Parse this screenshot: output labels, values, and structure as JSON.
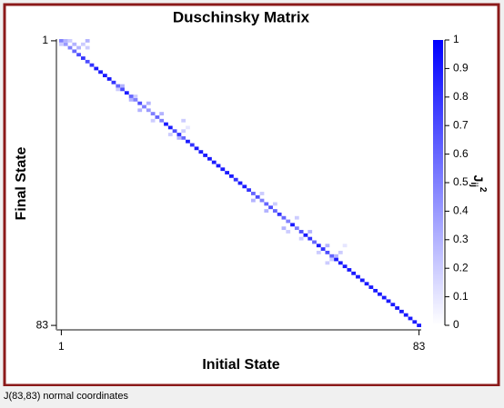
{
  "chart_data": {
    "type": "heatmap",
    "title": "Duschinsky Matrix",
    "x_label": "Initial State",
    "y_label": "Final State",
    "colorbar_label": {
      "base": "J",
      "sub": "ij",
      "sup": "2"
    },
    "xlim": [
      0.5,
      83.5
    ],
    "ylim": [
      83.5,
      0.5
    ],
    "xticks": [
      1,
      83
    ],
    "yticks": [
      1,
      83
    ],
    "zlim": [
      0,
      1
    ],
    "zticks": [
      0,
      0.1,
      0.2,
      0.3,
      0.4,
      0.5,
      0.6,
      0.7,
      0.8,
      0.9,
      1
    ],
    "color_low": "#ffffff",
    "color_high": "#0000ff",
    "cells": {
      "x": [
        1,
        2,
        3,
        4,
        5,
        6,
        7,
        8,
        9,
        10,
        11,
        12,
        13,
        14,
        15,
        16,
        17,
        18,
        19,
        20,
        21,
        22,
        23,
        24,
        25,
        26,
        27,
        28,
        29,
        30,
        31,
        32,
        33,
        34,
        35,
        36,
        37,
        38,
        39,
        40,
        41,
        42,
        43,
        44,
        45,
        46,
        47,
        48,
        49,
        50,
        51,
        52,
        53,
        54,
        55,
        56,
        57,
        58,
        59,
        60,
        61,
        62,
        63,
        64,
        65,
        66,
        67,
        68,
        69,
        70,
        71,
        72,
        73,
        74,
        75,
        76,
        77,
        78,
        79,
        80,
        81,
        82,
        83,
        2,
        3,
        4,
        1,
        6,
        7,
        7,
        5,
        14,
        15,
        17,
        18,
        19,
        21,
        22,
        24,
        26,
        29,
        28,
        29,
        30,
        45,
        47,
        48,
        50,
        52,
        55,
        53,
        56,
        58,
        60,
        62,
        63,
        64,
        65,
        62,
        66
      ],
      "y": [
        1,
        2,
        3,
        4,
        5,
        6,
        7,
        8,
        9,
        10,
        11,
        12,
        13,
        14,
        15,
        16,
        17,
        18,
        19,
        20,
        21,
        22,
        23,
        24,
        25,
        26,
        27,
        28,
        29,
        30,
        31,
        32,
        33,
        34,
        35,
        36,
        37,
        38,
        39,
        40,
        41,
        42,
        43,
        44,
        45,
        46,
        47,
        48,
        49,
        50,
        51,
        52,
        53,
        54,
        55,
        56,
        57,
        58,
        59,
        60,
        61,
        62,
        63,
        64,
        65,
        66,
        67,
        68,
        69,
        70,
        71,
        72,
        73,
        74,
        75,
        76,
        77,
        78,
        79,
        80,
        81,
        82,
        83,
        1,
        1,
        2,
        2,
        2,
        1,
        3,
        3,
        15,
        14,
        18,
        17,
        21,
        19,
        24,
        22,
        28,
        27,
        29,
        24,
        26,
        47,
        45,
        50,
        48,
        55,
        52,
        56,
        58,
        56,
        62,
        60,
        64,
        63,
        62,
        65,
        60
      ],
      "values": [
        0.5,
        0.4,
        0.5,
        0.6,
        0.7,
        0.8,
        0.7,
        0.8,
        0.9,
        0.9,
        0.9,
        0.9,
        0.8,
        0.6,
        0.7,
        0.9,
        0.6,
        0.5,
        0.7,
        0.5,
        0.4,
        0.5,
        0.6,
        0.5,
        0.9,
        0.9,
        0.7,
        0.8,
        0.6,
        0.9,
        0.8,
        0.9,
        0.9,
        0.9,
        0.9,
        0.9,
        0.9,
        0.9,
        0.9,
        0.9,
        0.8,
        0.9,
        0.9,
        0.8,
        0.6,
        0.7,
        0.5,
        0.6,
        0.7,
        0.6,
        0.8,
        0.6,
        0.5,
        0.9,
        0.5,
        0.7,
        0.9,
        0.8,
        0.6,
        0.9,
        0.8,
        0.7,
        0.6,
        0.9,
        0.9,
        0.9,
        0.9,
        0.9,
        0.9,
        0.9,
        0.9,
        0.9,
        0.9,
        0.9,
        0.9,
        0.9,
        0.9,
        0.9,
        0.9,
        0.9,
        0.9,
        0.9,
        0.9,
        0.3,
        0.2,
        0.3,
        0.2,
        0.2,
        0.3,
        0.2,
        0.3,
        0.2,
        0.3,
        0.3,
        0.2,
        0.3,
        0.3,
        0.2,
        0.3,
        0.2,
        0.2,
        0.3,
        0.2,
        0.1,
        0.3,
        0.2,
        0.3,
        0.2,
        0.3,
        0.2,
        0.2,
        0.2,
        0.3,
        0.2,
        0.3,
        0.2,
        0.3,
        0.2,
        0.2,
        0.1
      ]
    }
  },
  "status_bar": "J(83,83) normal coordinates"
}
